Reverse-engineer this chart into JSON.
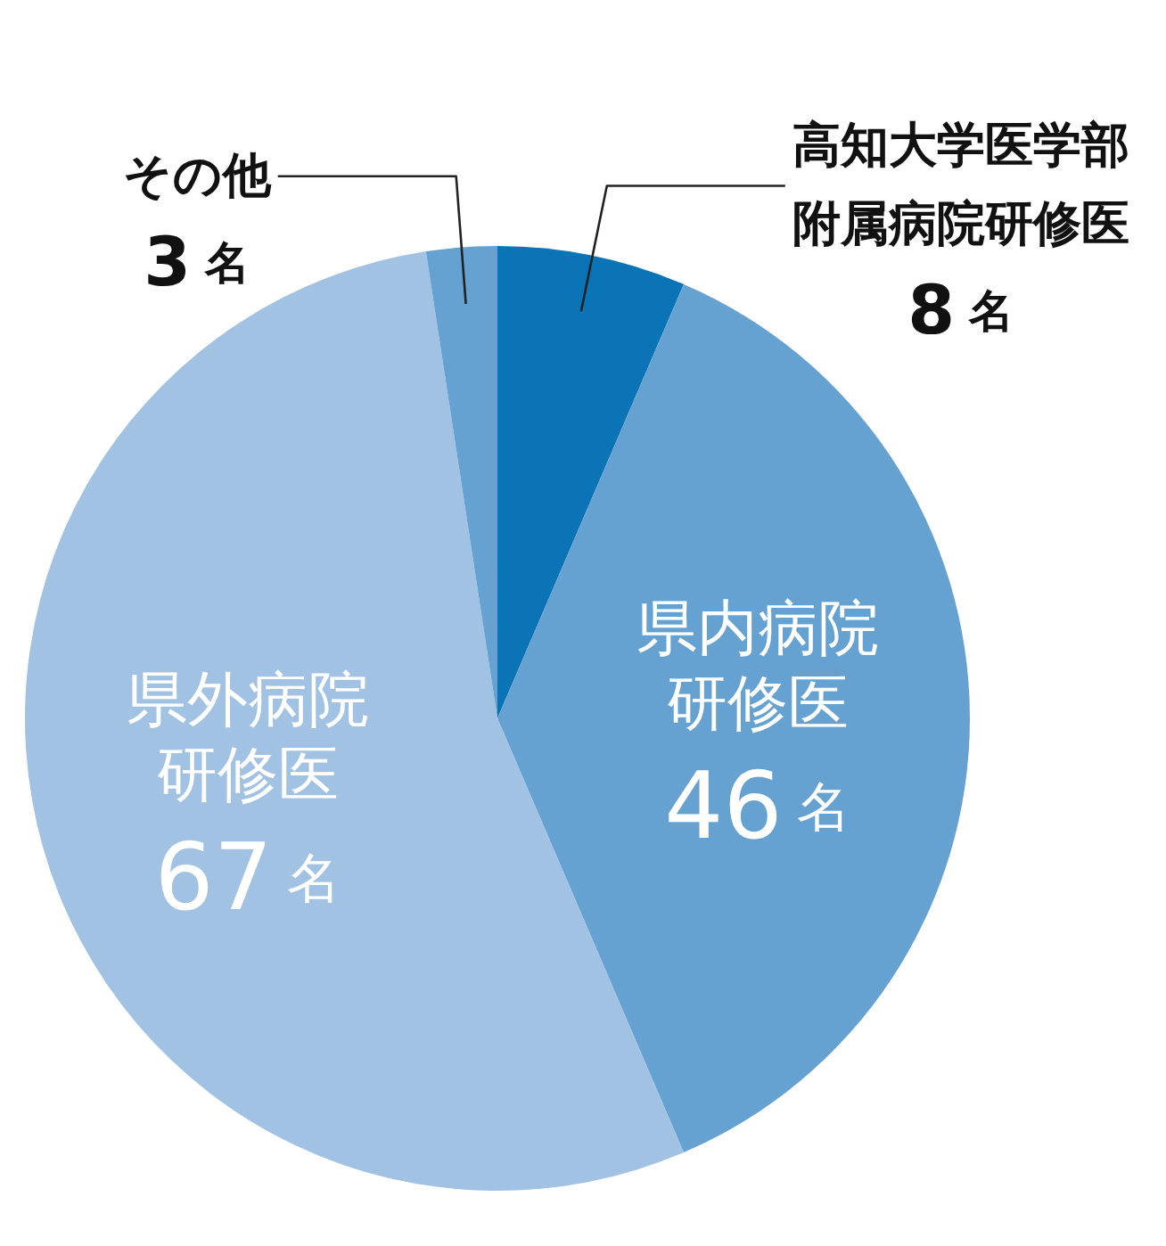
{
  "chart_data": {
    "type": "pie",
    "categories": [
      "高知大学医学部附属病院研修医",
      "県内病院研修医",
      "県外病院研修医",
      "その他"
    ],
    "values": [
      8,
      46,
      67,
      3
    ],
    "colors": [
      "#0a74b6",
      "#66a2d1",
      "#a2c2e3",
      "#66a2d1"
    ],
    "value_labels": [
      "8名",
      "46名",
      "67名",
      "3名"
    ]
  }
}
